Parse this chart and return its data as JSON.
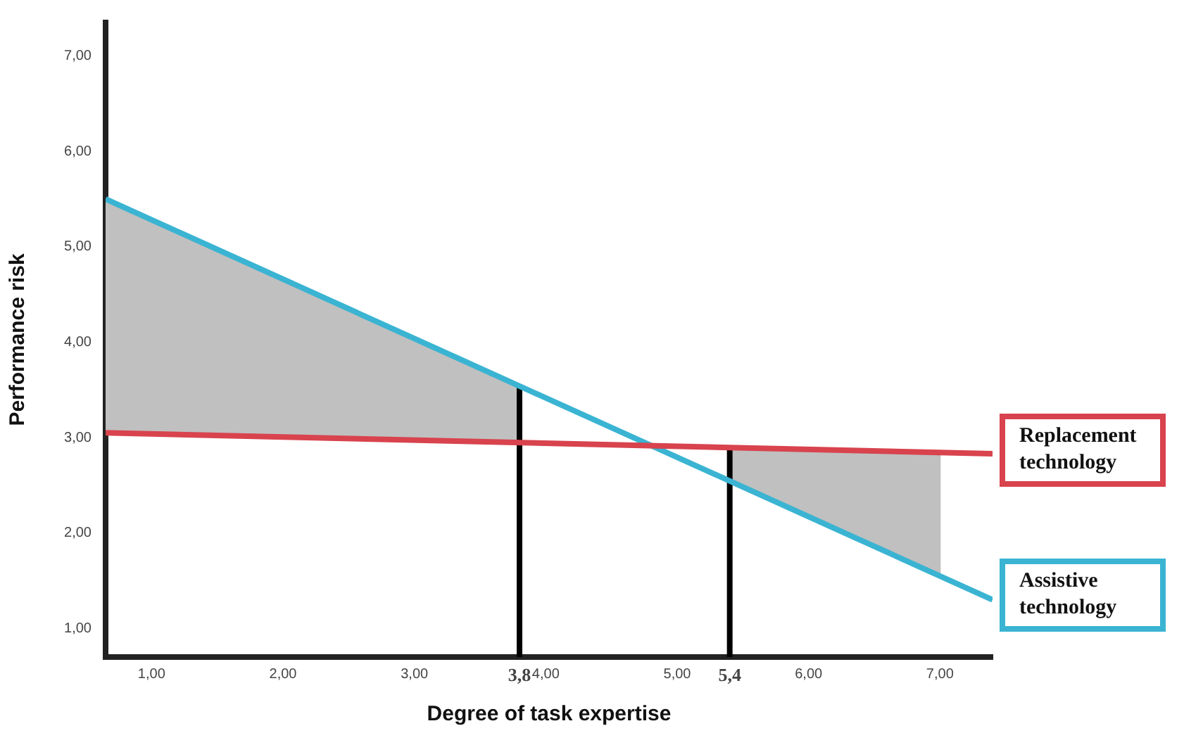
{
  "chart_data": {
    "type": "line",
    "xlabel": "Degree of task expertise",
    "ylabel": "Performance risk",
    "xlim": [
      0.65,
      7.4
    ],
    "ylim": [
      0.7,
      7.35
    ],
    "xticks": [
      {
        "value": 1,
        "label": "1,00"
      },
      {
        "value": 2,
        "label": "2,00"
      },
      {
        "value": 3,
        "label": "3,00"
      },
      {
        "value": 3.8,
        "label": "3,8"
      },
      {
        "value": 4,
        "label": "4,00"
      },
      {
        "value": 5,
        "label": "5,00"
      },
      {
        "value": 5.4,
        "label": "5,4"
      },
      {
        "value": 6,
        "label": "6,00"
      },
      {
        "value": 7,
        "label": "7,00"
      }
    ],
    "yticks": [
      {
        "value": 1,
        "label": "1,00"
      },
      {
        "value": 2,
        "label": "2,00"
      },
      {
        "value": 3,
        "label": "3,00"
      },
      {
        "value": 4,
        "label": "4,00"
      },
      {
        "value": 5,
        "label": "5,00"
      },
      {
        "value": 6,
        "label": "6,00"
      },
      {
        "value": 7,
        "label": "7,00"
      }
    ],
    "series": [
      {
        "type": "area",
        "color": "#c0c0c0",
        "x": [
          0.65,
          3.8,
          3.8,
          0.65
        ],
        "values": [
          5.5,
          3.54,
          2.95,
          3.05
        ]
      },
      {
        "type": "area",
        "color": "#c0c0c0",
        "x": [
          5.4,
          7.0,
          7.0,
          5.4
        ],
        "values": [
          2.9,
          2.84,
          1.55,
          2.54
        ]
      },
      {
        "type": "line",
        "name": "Replacement technology",
        "color": "#d8434d",
        "x": [
          0.65,
          7.4
        ],
        "values": [
          3.05,
          2.83
        ]
      },
      {
        "type": "line",
        "name": "Assistive technology",
        "color": "#3ab4d2",
        "x": [
          0.65,
          7.4
        ],
        "values": [
          5.5,
          1.3
        ]
      },
      {
        "type": "line",
        "color": "#000000",
        "x": [
          3.8,
          3.8
        ],
        "values": [
          0.7,
          3.54
        ]
      },
      {
        "type": "line",
        "color": "#000000",
        "x": [
          5.4,
          5.4
        ],
        "values": [
          0.7,
          2.9
        ]
      }
    ]
  }
}
